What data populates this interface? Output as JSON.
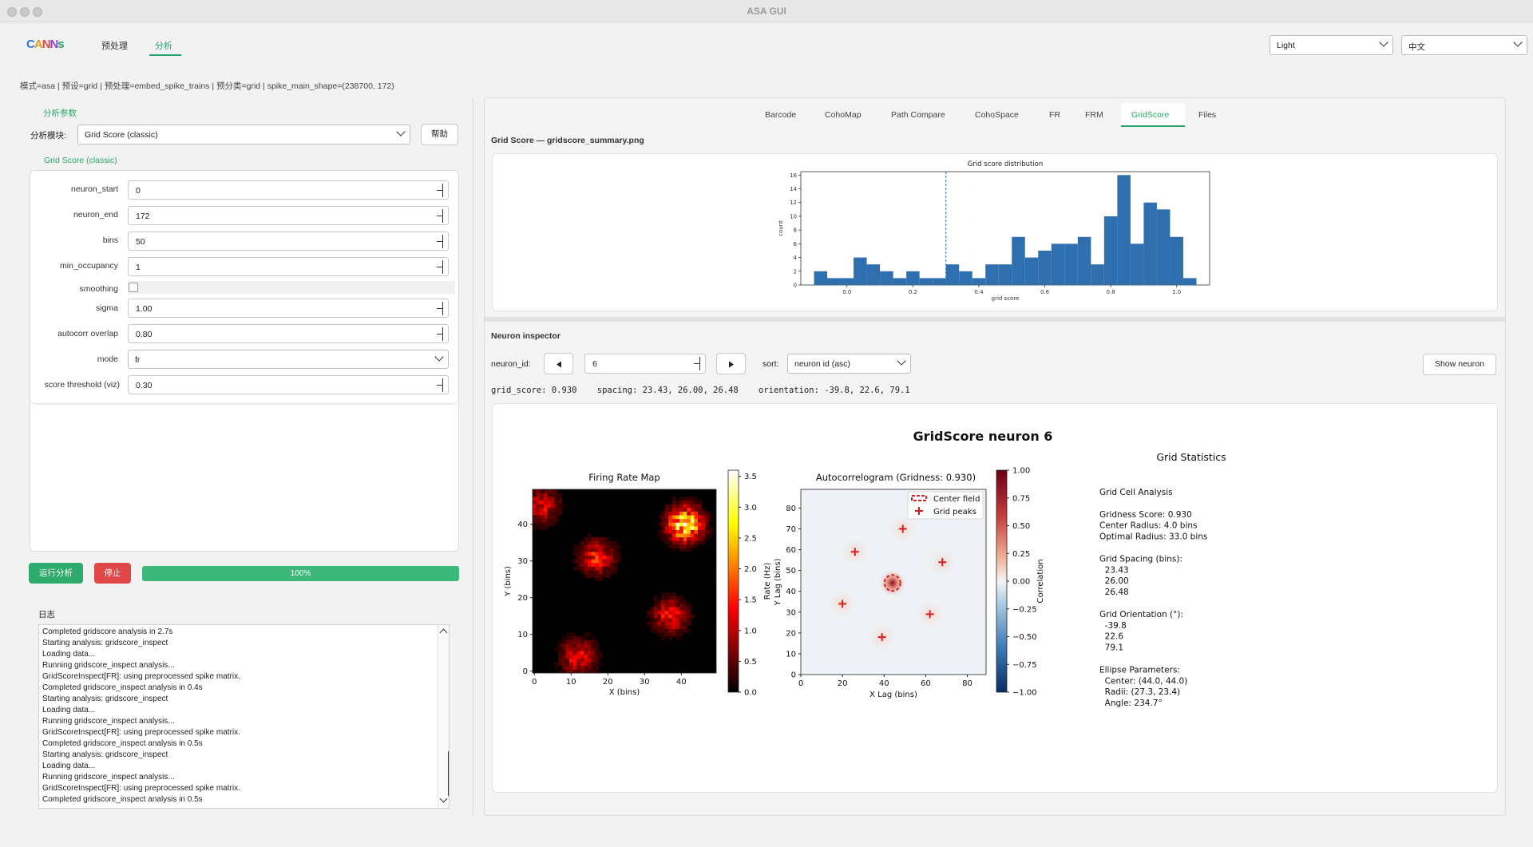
{
  "window": {
    "title": "ASA GUI"
  },
  "header": {
    "logo_text": "CANNs",
    "nav": [
      "预处理",
      "分析"
    ],
    "theme_select": "Light",
    "lang_select": "中文"
  },
  "status_line": "模式=asa | 预设=grid | 预处理=embed_spike_trains | 预分类=grid | spike_main_shape=(238700, 172)",
  "left": {
    "section_title": "分析参数",
    "module_label": "分析模块:",
    "module_value": "Grid Score (classic)",
    "help_button": "帮助",
    "group_title": "Grid Score (classic)",
    "params": {
      "neuron_start": {
        "label": "neuron_start",
        "value": "0"
      },
      "neuron_end": {
        "label": "neuron_end",
        "value": "172"
      },
      "bins": {
        "label": "bins",
        "value": "50"
      },
      "min_occupancy": {
        "label": "min_occupancy",
        "value": "1"
      },
      "smoothing": {
        "label": "smoothing"
      },
      "sigma": {
        "label": "sigma",
        "value": "1.00"
      },
      "autocorr_overlap": {
        "label": "autocorr overlap",
        "value": "0.80"
      },
      "mode": {
        "label": "mode",
        "value": "fr"
      },
      "score_threshold": {
        "label": "score threshold (viz)",
        "value": "0.30"
      }
    },
    "run_button": "运行分析",
    "stop_button": "停止",
    "progress": {
      "text": "100%",
      "value": 1.0
    },
    "log_title": "日志",
    "log_lines": [
      "Completed gridscore analysis in 2.7s",
      "Starting analysis: gridscore_inspect",
      "Loading data...",
      "Running gridscore_inspect analysis...",
      "GridScoreInspect[FR]: using preprocessed spike matrix.",
      "Completed gridscore_inspect analysis in 0.4s",
      "Starting analysis: gridscore_inspect",
      "Loading data...",
      "Running gridscore_inspect analysis...",
      "GridScoreInspect[FR]: using preprocessed spike matrix.",
      "Completed gridscore_inspect analysis in 0.5s",
      "Starting analysis: gridscore_inspect",
      "Loading data...",
      "Running gridscore_inspect analysis...",
      "GridScoreInspect[FR]: using preprocessed spike matrix.",
      "Completed gridscore_inspect analysis in 0.5s"
    ]
  },
  "right": {
    "tabs": [
      "Barcode",
      "CohoMap",
      "Path Compare",
      "CohoSpace",
      "FR",
      "FRM",
      "GridScore",
      "Files"
    ],
    "active_tab": "GridScore",
    "summary_title": "Grid Score — gridscore_summary.png",
    "inspector_title": "Neuron inspector",
    "neuron_id_label": "neuron_id:",
    "neuron_id_value": "6",
    "sort_label": "sort:",
    "sort_value": "neuron id (asc)",
    "show_button": "Show neuron",
    "metrics_line": "grid_score: 0.930    spacing: 23.43, 26.00, 26.48    orientation: -39.8, 22.6, 79.1"
  },
  "histogram": {
    "title": "Grid score distribution",
    "xlabel": "grid score",
    "ylabel": "count",
    "xticks": [
      "0.0",
      "0.2",
      "0.4",
      "0.6",
      "0.8",
      "1.0"
    ],
    "yticks": [
      "0",
      "2",
      "4",
      "6",
      "8",
      "10",
      "12",
      "14",
      "16"
    ]
  },
  "neuron_figure": {
    "suptitle": "GridScore neuron 6",
    "ratemap": {
      "title": "Firing Rate Map",
      "xlabel": "X (bins)",
      "ylabel": "Y (bins)",
      "xticks": [
        "0",
        "10",
        "20",
        "30",
        "40"
      ],
      "yticks": [
        "0",
        "10",
        "20",
        "30",
        "40"
      ],
      "cbar_label": "Rate (Hz)",
      "cbar_ticks": [
        "0.0",
        "0.5",
        "1.0",
        "1.5",
        "2.0",
        "2.5",
        "3.0",
        "3.5"
      ]
    },
    "autocorr": {
      "title": "Autocorrelogram (Gridness: 0.930)",
      "xlabel": "X Lag (bins)",
      "ylabel": "Y Lag (bins)",
      "xticks": [
        "0",
        "20",
        "40",
        "60",
        "80"
      ],
      "yticks": [
        "0",
        "10",
        "20",
        "30",
        "40",
        "50",
        "60",
        "70",
        "80"
      ],
      "legend": [
        "Center field",
        "Grid peaks"
      ],
      "cbar_label": "Correlation",
      "cbar_ticks": [
        "1.00",
        "0.75",
        "0.50",
        "0.25",
        "0.00",
        "−0.25",
        "−0.50",
        "−0.75",
        "−1.00"
      ]
    },
    "stats": {
      "title": "Grid Statistics",
      "lines": [
        "Grid Cell Analysis",
        "",
        "Gridness Score: 0.930",
        "Center Radius: 4.0 bins",
        "Optimal Radius: 33.0 bins",
        "",
        "Grid Spacing (bins):",
        "  23.43",
        "  26.00",
        "  26.48",
        "",
        "Grid Orientation (°):",
        "  -39.8",
        "  22.6",
        "  79.1",
        "",
        "Ellipse Parameters:",
        "  Center: (44.0, 44.0)",
        "  Radii: (27.3, 23.4)",
        "  Angle: 234.7°"
      ]
    }
  },
  "chart_data": [
    {
      "type": "bar",
      "title": "Grid score distribution",
      "xlabel": "grid score",
      "ylabel": "count",
      "bin_centers": [
        -0.08,
        -0.04,
        0.0,
        0.04,
        0.08,
        0.12,
        0.16,
        0.2,
        0.24,
        0.28,
        0.32,
        0.36,
        0.4,
        0.44,
        0.48,
        0.52,
        0.56,
        0.6,
        0.64,
        0.68,
        0.72,
        0.76,
        0.8,
        0.84,
        0.88,
        0.92,
        0.96,
        1.0,
        1.04
      ],
      "values": [
        2,
        1,
        1,
        4,
        3,
        2,
        1,
        2,
        1,
        1,
        3,
        2,
        1,
        3,
        3,
        7,
        4,
        5,
        6,
        6,
        7,
        3,
        10,
        16,
        6,
        12,
        11,
        7,
        1
      ],
      "threshold": 0.3,
      "xlim": [
        -0.14,
        1.1
      ],
      "ylim": [
        0,
        16.5
      ]
    },
    {
      "type": "heatmap",
      "title": "Firing Rate Map",
      "xlabel": "X (bins)",
      "ylabel": "Y (bins)",
      "cbar_label": "Rate (Hz)",
      "vmin": 0,
      "vmax": 3.6,
      "fields": [
        {
          "x": 2,
          "y": 45,
          "peak": 1.4
        },
        {
          "x": 17,
          "y": 31,
          "peak": 1.7
        },
        {
          "x": 41,
          "y": 40,
          "peak": 3.5
        },
        {
          "x": 12,
          "y": 4,
          "peak": 1.6
        },
        {
          "x": 37,
          "y": 15,
          "peak": 1.6
        }
      ]
    },
    {
      "type": "heatmap",
      "title": "Autocorrelogram (Gridness: 0.930)",
      "xlabel": "X Lag (bins)",
      "ylabel": "Y Lag (bins)",
      "cbar_label": "Correlation",
      "vmin": -1,
      "vmax": 1,
      "center": {
        "x": 44,
        "y": 44
      },
      "peaks": [
        {
          "x": 49,
          "y": 70
        },
        {
          "x": 26,
          "y": 59
        },
        {
          "x": 68,
          "y": 54
        },
        {
          "x": 20,
          "y": 34
        },
        {
          "x": 62,
          "y": 29
        },
        {
          "x": 39,
          "y": 18
        }
      ]
    }
  ],
  "colors": {
    "accent": "#2aa56a",
    "stop": "#e04848",
    "bar": "#2f6fb0"
  }
}
